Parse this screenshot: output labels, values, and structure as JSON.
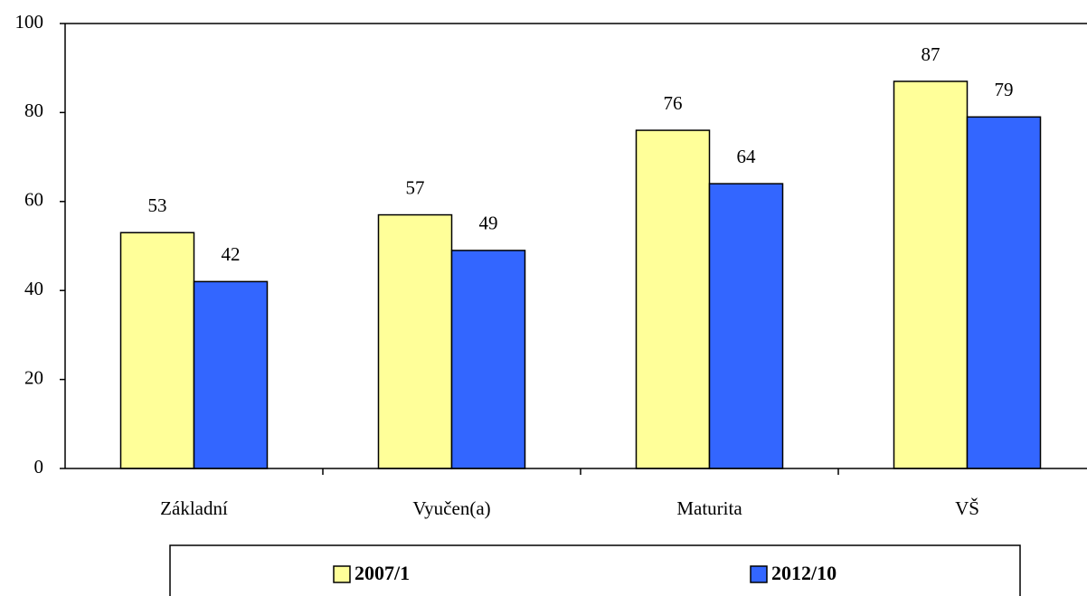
{
  "chart_data": {
    "type": "bar",
    "categories": [
      "Základní",
      "Vyučen(a)",
      "Maturita",
      "VŠ"
    ],
    "series": [
      {
        "name": "2007/1",
        "color": "#ffff99",
        "values": [
          53,
          57,
          76,
          87
        ]
      },
      {
        "name": "2012/10",
        "color": "#3366ff",
        "values": [
          42,
          49,
          64,
          79
        ]
      }
    ],
    "ylim": [
      0,
      100
    ],
    "yticks": [
      0,
      20,
      40,
      60,
      80,
      100
    ],
    "grid": false,
    "legend": "bottom"
  }
}
